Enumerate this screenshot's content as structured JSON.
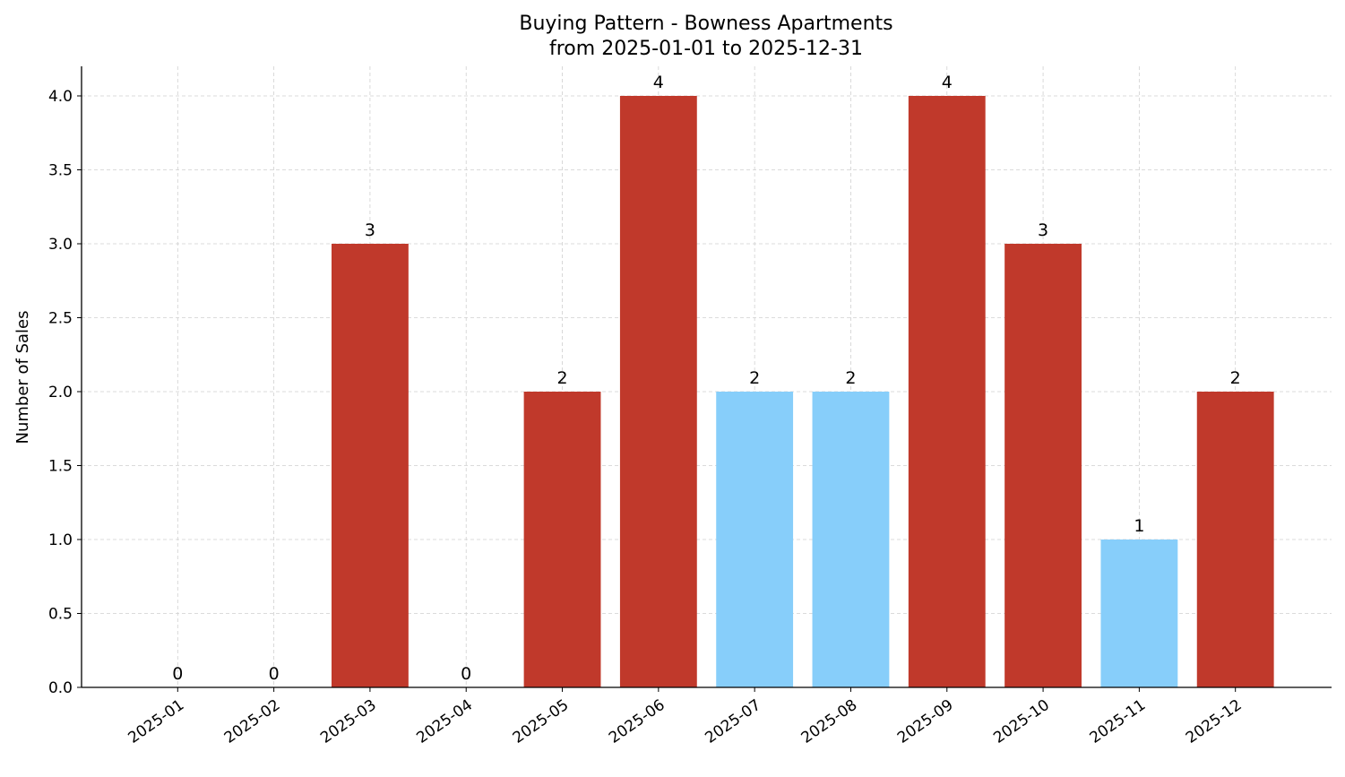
{
  "chart_data": {
    "type": "bar",
    "title": "Buying Pattern - Bowness Apartments",
    "subtitle": "from 2025-01-01 to 2025-12-31",
    "xlabel": "",
    "ylabel": "Number of Sales",
    "categories": [
      "2025-01",
      "2025-02",
      "2025-03",
      "2025-04",
      "2025-05",
      "2025-06",
      "2025-07",
      "2025-08",
      "2025-09",
      "2025-10",
      "2025-11",
      "2025-12"
    ],
    "values": [
      0,
      0,
      3,
      0,
      2,
      4,
      2,
      2,
      4,
      3,
      1,
      2
    ],
    "bar_colors": [
      "#c0392b",
      "#c0392b",
      "#c0392b",
      "#c0392b",
      "#c0392b",
      "#c0392b",
      "#87cefa",
      "#87cefa",
      "#c0392b",
      "#c0392b",
      "#87cefa",
      "#c0392b"
    ],
    "ylim": [
      0,
      4.2
    ],
    "yticks": [
      "0.0",
      "0.5",
      "1.0",
      "1.5",
      "2.0",
      "2.5",
      "3.0",
      "3.5",
      "4.0"
    ],
    "grid": true
  }
}
